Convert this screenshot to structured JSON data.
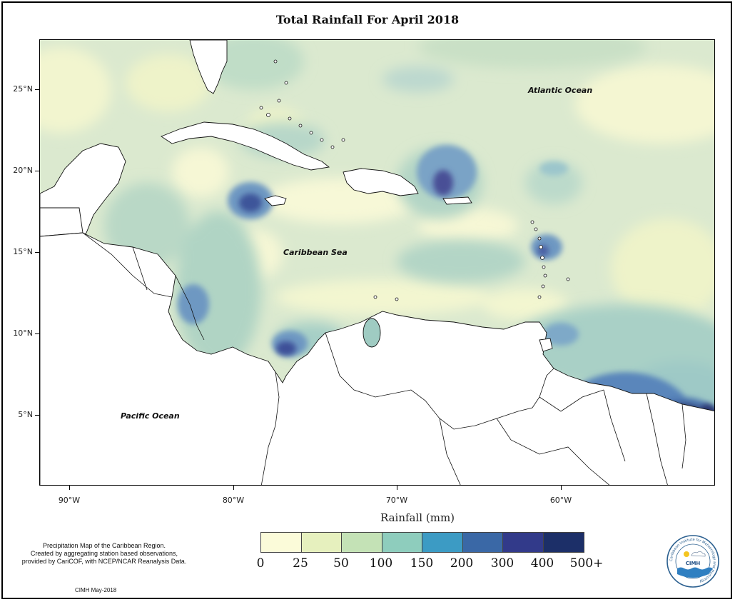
{
  "title": "Total Rainfall For April 2018",
  "map": {
    "ocean_labels": {
      "atlantic": "Atlantic Ocean",
      "caribbean": "Caribbean Sea",
      "pacific": "Pacific Ocean"
    },
    "lat_ticks": [
      "25°N",
      "20°N",
      "15°N",
      "10°N",
      "5°N"
    ],
    "lon_ticks": [
      "90°W",
      "80°W",
      "70°W",
      "60°W"
    ],
    "axis_title": "Rainfall (mm)"
  },
  "legend": {
    "labels": [
      "0",
      "25",
      "50",
      "100",
      "150",
      "200",
      "300",
      "400",
      "500+"
    ],
    "colors": [
      "#fbfbd9",
      "#e6f0be",
      "#c4e2b6",
      "#8ecdbd",
      "#3c9bc4",
      "#3a68a6",
      "#323a8a",
      "#1c2f68"
    ]
  },
  "note": {
    "lines": [
      "Precipitation Map of the Caribbean Region.",
      "Created by aggregating station based observations,",
      "provided by CariCOF, with NCEP/NCAR Reanalysis Data."
    ],
    "credit": "CIMH May-2018"
  },
  "logo": {
    "text": "CIMH",
    "ring_text": "Caribbean Institute for Meteorology and Hydrology"
  }
}
